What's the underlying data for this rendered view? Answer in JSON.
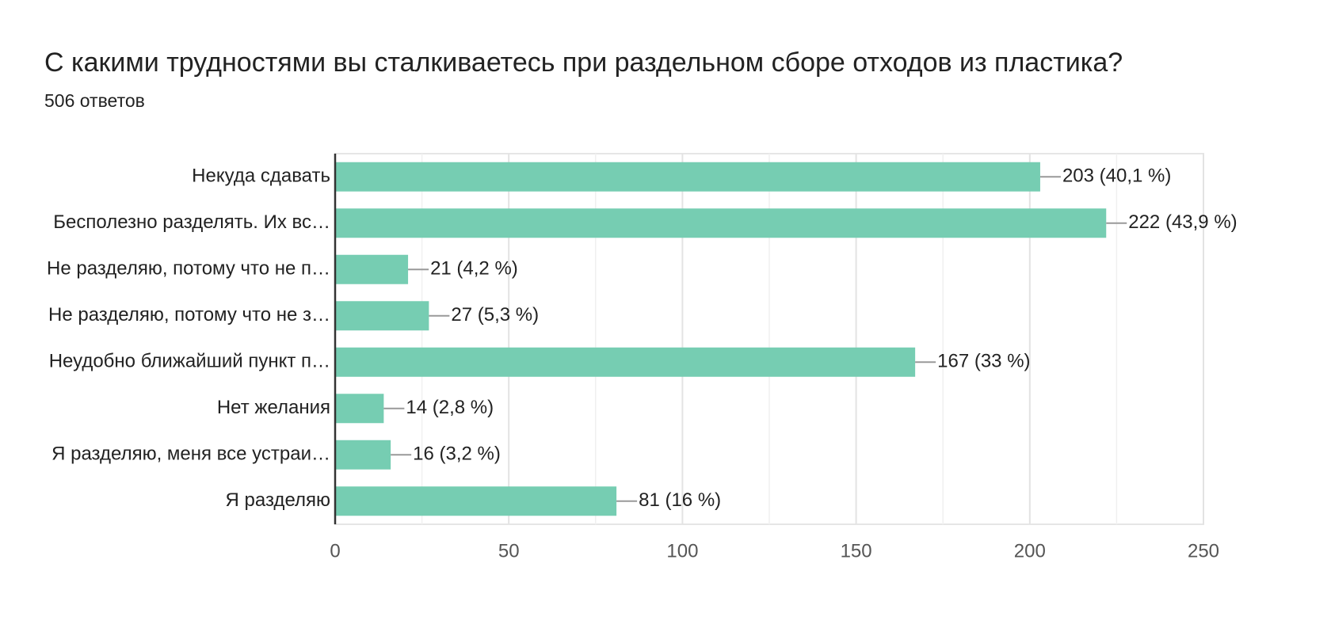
{
  "chart_data": {
    "type": "bar",
    "orientation": "horizontal",
    "title": "С какими трудностями вы сталкиваетесь при раздельном сборе отходов из пластика?",
    "subtitle": "506 ответов",
    "categories": [
      "Некуда сдавать",
      "Бесполезно разделять. Их вс…",
      "Не разделяю, потому что не п…",
      "Не разделяю, потому что не з…",
      "Неудобно ближайший пункт п…",
      "Нет желания",
      "Я разделяю, меня все устраи…",
      "Я разделяю"
    ],
    "values": [
      203,
      222,
      21,
      27,
      167,
      14,
      16,
      81
    ],
    "value_labels": [
      "203 (40,1 %)",
      "222 (43,9 %)",
      "21 (4,2 %)",
      "27 (5,3 %)",
      "167 (33 %)",
      "14 (2,8 %)",
      "16 (3,2 %)",
      "81 (16 %)"
    ],
    "color": "#76cdb2",
    "xlim": [
      0,
      250
    ],
    "xticks": [
      0,
      50,
      100,
      150,
      200,
      250
    ],
    "minor_xticks": [
      25,
      75,
      125,
      175,
      225
    ],
    "grid": true
  }
}
